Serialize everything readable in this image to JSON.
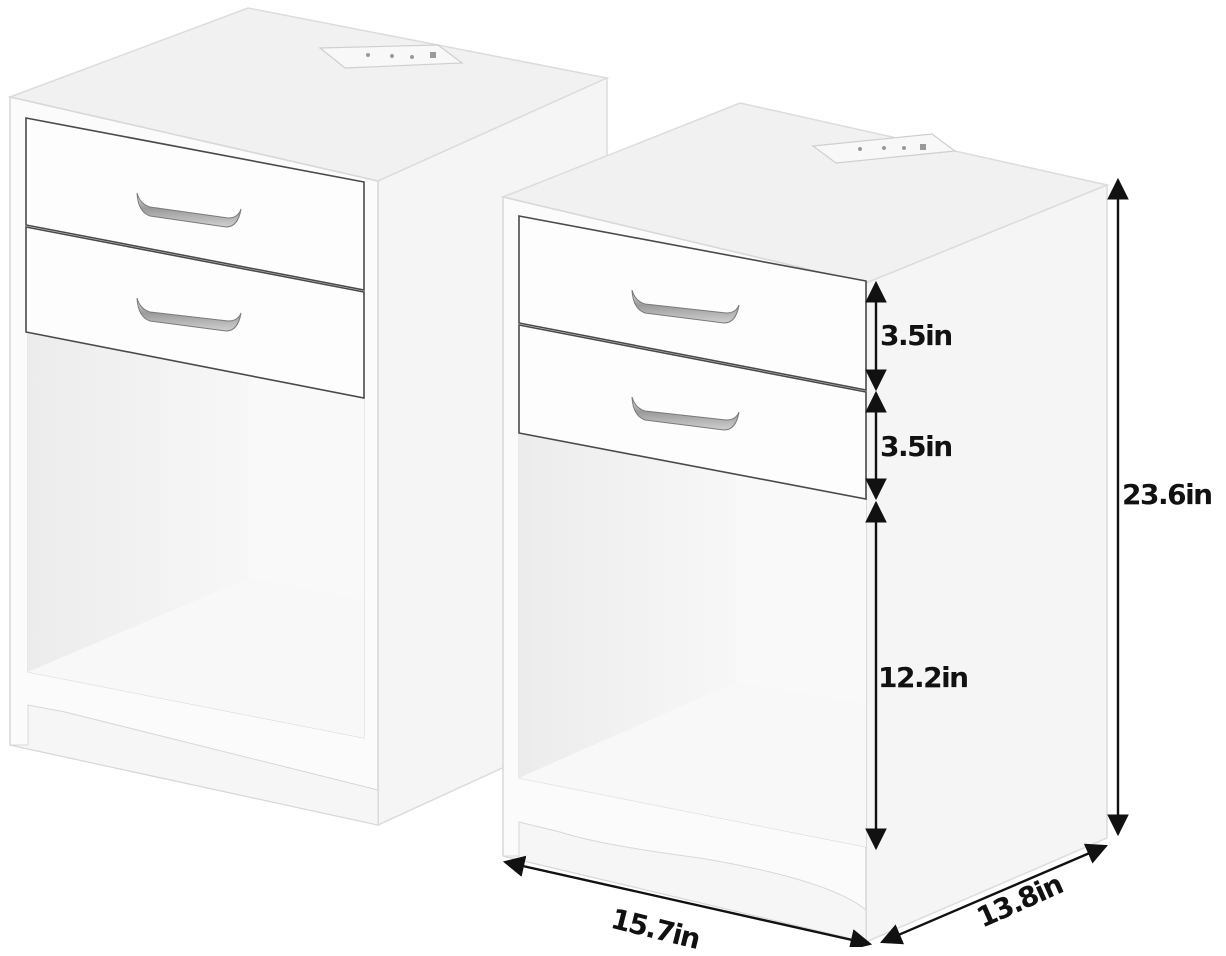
{
  "product": "two white nightstands, each with two drawers, an open shelf and a built-in charging outlet on top",
  "colors": {
    "cabinet_top": "#f1f1f1",
    "cabinet_front": "#fbfbfb",
    "cabinet_side": "#f4f4f4",
    "cabinet_outline": "#dddddd",
    "drawer_outline": "#4a4a4a",
    "handle": "#8d8d8d",
    "dimension_line": "#111111",
    "label_text": "#111111"
  },
  "icons": {
    "charging": "charging-outlet-icon",
    "handle": "drawer-handle-icon"
  },
  "dimensions": {
    "drawer_height_top": "3.5in",
    "drawer_height_bottom": "3.5in",
    "open_shelf_height": "12.2in",
    "total_height": "23.6in",
    "width": "15.7in",
    "depth": "13.8in"
  }
}
